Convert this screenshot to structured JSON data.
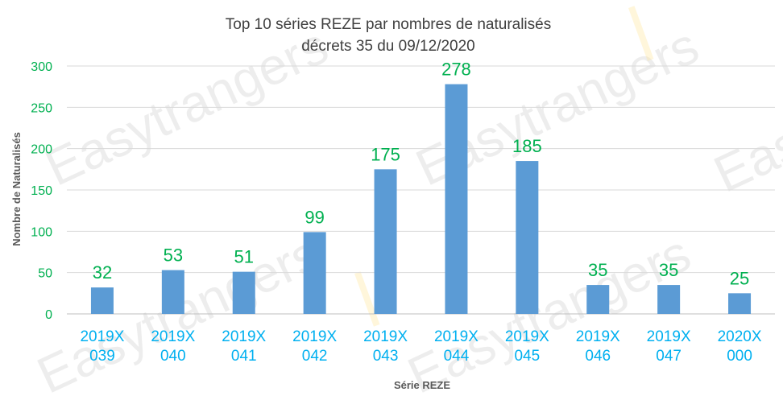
{
  "watermark": {
    "text": "Easytrangers"
  },
  "chart_data": {
    "type": "bar",
    "title": [
      "Top 10 séries REZE par nombres de naturalisés",
      "décrets 35 du 09/12/2020"
    ],
    "xlabel": "Série REZE",
    "ylabel": "Nombre de Naturalisés",
    "categories": [
      [
        "2019X",
        "039"
      ],
      [
        "2019X",
        "040"
      ],
      [
        "2019X",
        "041"
      ],
      [
        "2019X",
        "042"
      ],
      [
        "2019X",
        "043"
      ],
      [
        "2019X",
        "044"
      ],
      [
        "2019X",
        "045"
      ],
      [
        "2019X",
        "046"
      ],
      [
        "2019X",
        "047"
      ],
      [
        "2020X",
        "000"
      ]
    ],
    "values": [
      32,
      53,
      51,
      99,
      175,
      278,
      185,
      35,
      35,
      25
    ],
    "ylim": [
      0,
      300
    ],
    "yticks": [
      0,
      50,
      100,
      150,
      200,
      250,
      300
    ],
    "grid": true,
    "legend": "none",
    "colors": {
      "bar": "#5b9bd5",
      "data_label": "#00b050",
      "y_tick": "#00b050",
      "x_tick": "#00b0f0",
      "grid": "#d9d9d9",
      "title": "#404040",
      "axis_title": "#595959"
    }
  }
}
